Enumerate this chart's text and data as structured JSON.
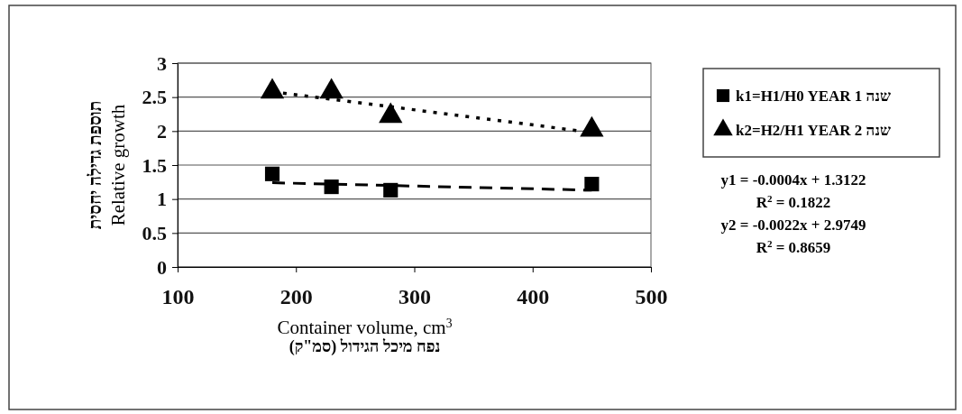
{
  "chart_data": {
    "type": "scatter",
    "xlabel": "Container volume, cm$^{3}$\nנפח מיכל הגידול (סמ\"ק)",
    "ylabel": "תוספת גדילה יחסית\nRelative growth",
    "xlim": [
      100,
      500
    ],
    "xticks": [
      100,
      200,
      300,
      400,
      500
    ],
    "ylim": [
      0,
      3
    ],
    "yticks": [
      0,
      0.5,
      1,
      1.5,
      2,
      2.5,
      3
    ],
    "grid": "y",
    "legend": "right",
    "series": [
      {
        "name": "k1=H1/H0 YEAR 1 שנה",
        "color": "#000000",
        "marker": "square",
        "x": [
          180,
          230,
          280,
          450
        ],
        "values": [
          1.37,
          1.18,
          1.13,
          1.22
        ]
      },
      {
        "name": "k2=H2/H1 YEAR 2 שנה",
        "color": "#000000",
        "marker": "triangle",
        "x": [
          180,
          230,
          280,
          450
        ],
        "values": [
          2.58,
          2.58,
          2.22,
          2.02
        ]
      },
      {
        "type": "line",
        "color": "#000000",
        "line_style": "dashed",
        "marker": "none",
        "x": [
          180,
          450
        ],
        "values": [
          1.24,
          1.13
        ]
      },
      {
        "type": "line",
        "color": "#000000",
        "line_style": "dotted",
        "marker": "none",
        "x": [
          180,
          450
        ],
        "values": [
          2.58,
          1.98
        ]
      }
    ],
    "annotations": [
      "y1 = -0.0004x + 1.3122",
      "R$^{2}$ = 0.1822",
      "y2 = -0.0022x + 2.9749",
      "R$^{2}$ = 0.8659"
    ]
  }
}
